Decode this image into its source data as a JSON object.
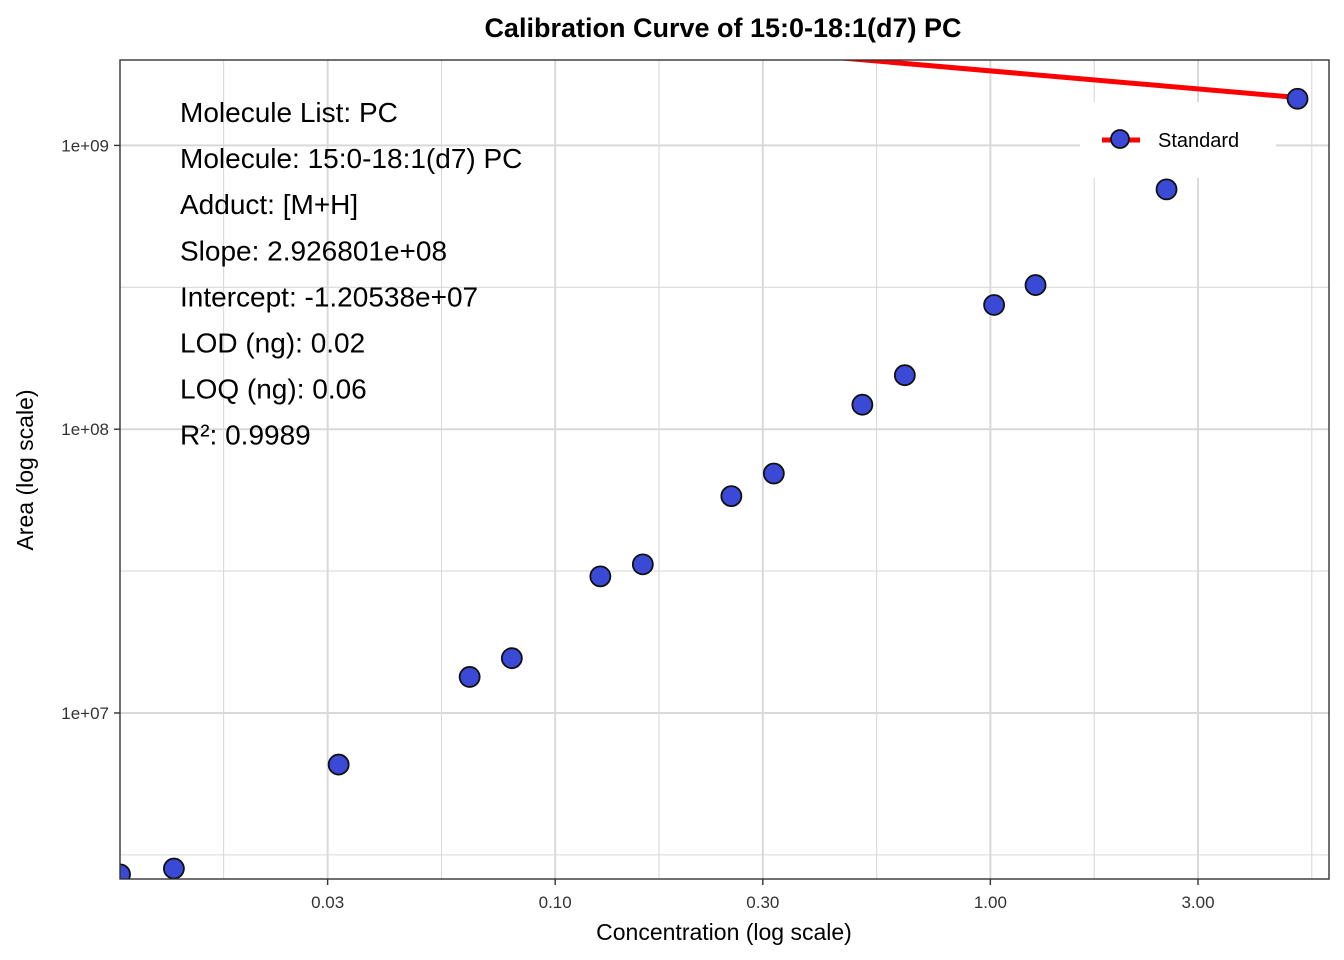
{
  "chart_data": {
    "type": "scatter",
    "title": "Calibration Curve of 15:0-18:1(d7) PC",
    "xlabel": "Concentration (log scale)",
    "ylabel": "Area (log scale)",
    "x_scale": "log10",
    "y_scale": "log10",
    "xlim": [
      0.01,
      6.0
    ],
    "ylim": [
      2600000,
      2000000000
    ],
    "x_ticks": [
      {
        "value": 0.03,
        "label": "0.03"
      },
      {
        "value": 0.1,
        "label": "0.10"
      },
      {
        "value": 0.3,
        "label": "0.30"
      },
      {
        "value": 1.0,
        "label": "1.00"
      },
      {
        "value": 3.0,
        "label": "3.00"
      }
    ],
    "x_minor_ticks": [
      0.0173,
      0.0548,
      0.1732,
      0.5477,
      1.7321,
      5.4772
    ],
    "y_ticks": [
      {
        "value": 10000000,
        "label": "1e+07"
      },
      {
        "value": 100000000,
        "label": "1e+08"
      },
      {
        "value": 1000000000,
        "label": "1e+09"
      }
    ],
    "y_minor_ticks": [
      3162278,
      31622777,
      316227766
    ],
    "grid": true,
    "legend": {
      "position": "top-right",
      "entries": [
        "Standard"
      ]
    },
    "series": [
      {
        "name": "Standard",
        "marker_color": "#3A49D6",
        "marker_edge": "#111111",
        "points": [
          {
            "x": 0.01,
            "y": 2700000
          },
          {
            "x": 0.0133,
            "y": 2830000
          },
          {
            "x": 0.0318,
            "y": 6580000
          },
          {
            "x": 0.0636,
            "y": 13400000
          },
          {
            "x": 0.0795,
            "y": 15600000
          },
          {
            "x": 0.127,
            "y": 30300000
          },
          {
            "x": 0.159,
            "y": 33400000
          },
          {
            "x": 0.254,
            "y": 58100000
          },
          {
            "x": 0.318,
            "y": 69800000
          },
          {
            "x": 0.508,
            "y": 122000000
          },
          {
            "x": 0.636,
            "y": 155000000
          },
          {
            "x": 1.02,
            "y": 274000000
          },
          {
            "x": 1.27,
            "y": 322000000
          },
          {
            "x": 2.54,
            "y": 700000000
          },
          {
            "x": 5.08,
            "y": 1460000000
          }
        ]
      }
    ],
    "fit_line": {
      "color": "#FF0000",
      "x_range": [
        0.0133,
        5.08
      ],
      "slope": 292680100,
      "intercept": -12053800
    },
    "annotations": [
      "Molecule List: PC",
      "Molecule: 15:0-18:1(d7) PC",
      "Adduct: [M+H]",
      "Slope: 2.926801e+08",
      "Intercept: -1.20538e+07",
      "LOD (ng): 0.02",
      "LOQ (ng): 0.06",
      "R²: 0.9989"
    ]
  }
}
